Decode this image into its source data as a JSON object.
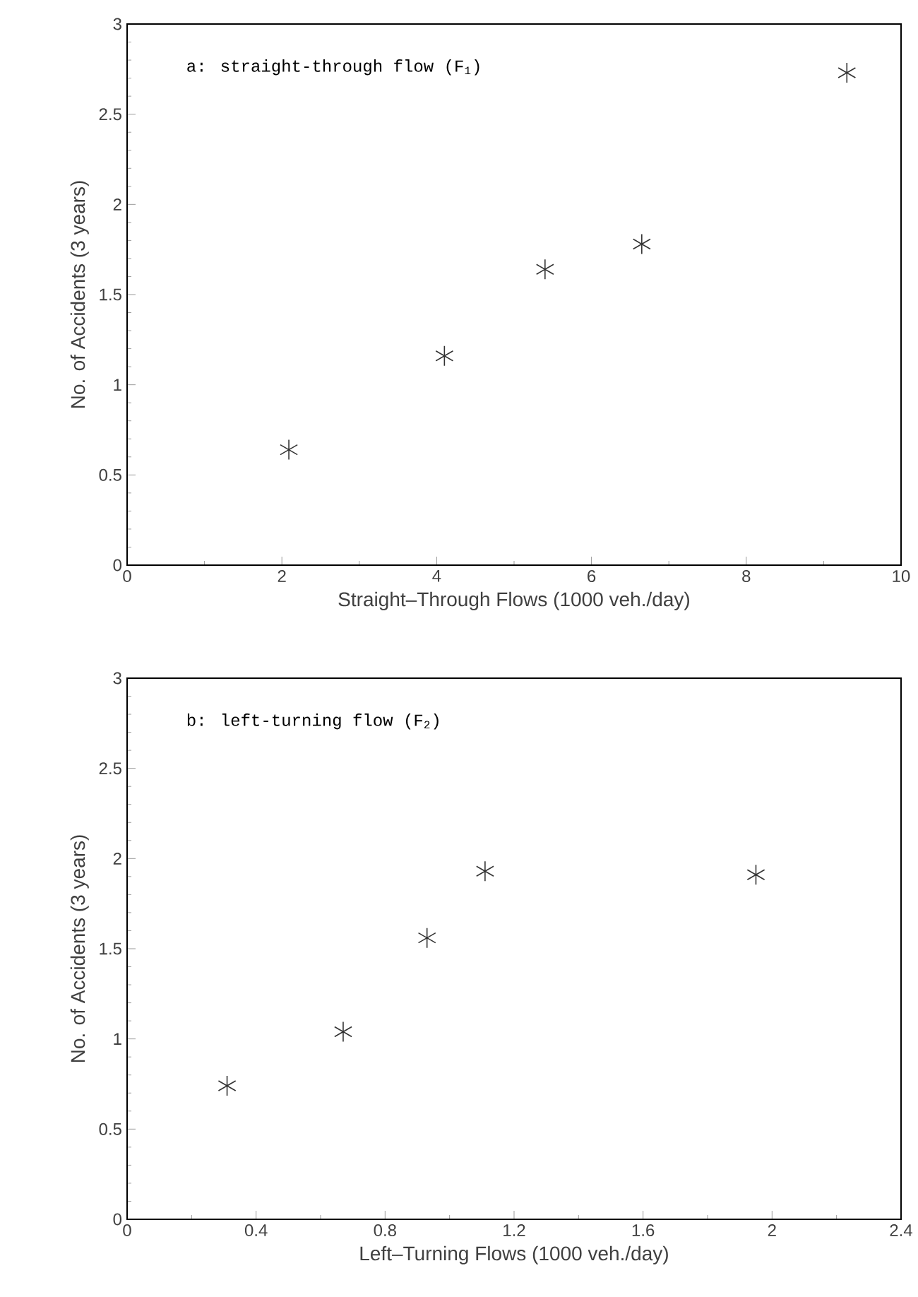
{
  "chart_data": [
    {
      "type": "scatter",
      "xlabel": "Straight–Through Flows (1000 veh./day)",
      "ylabel": "No. of Accidents (3 years)",
      "annotations": [
        "a: straight-through flow (F$_{1}$)"
      ],
      "marker": "cross",
      "x": [
        2.09,
        4.1,
        5.4,
        6.65,
        9.3
      ],
      "values": [
        0.64,
        1.16,
        1.64,
        1.78,
        2.73
      ],
      "color": "#333333",
      "xlim": [
        0,
        10
      ],
      "ylim": [
        0,
        3
      ],
      "xticks": [
        0,
        2,
        4,
        6,
        8,
        10
      ],
      "yticks": [
        0,
        0.5,
        1,
        1.5,
        2,
        2.5,
        3
      ]
    },
    {
      "type": "scatter",
      "xlabel": "Left–Turning Flows (1000 veh./day)",
      "ylabel": "No. of Accidents (3 years)",
      "annotations": [
        "b: left-turning flow (F$_{2}$)"
      ],
      "marker": "cross",
      "x": [
        0.31,
        0.67,
        0.93,
        1.11,
        1.95
      ],
      "values": [
        0.74,
        1.04,
        1.56,
        1.93,
        1.91
      ],
      "color": "#333333",
      "xlim": [
        0,
        2.4
      ],
      "ylim": [
        0,
        3
      ],
      "xticks": [
        0,
        0.4,
        0.8,
        1.2,
        1.6,
        2,
        2.4
      ],
      "yticks": [
        0,
        0.5,
        1,
        1.5,
        2,
        2.5,
        3
      ]
    }
  ]
}
